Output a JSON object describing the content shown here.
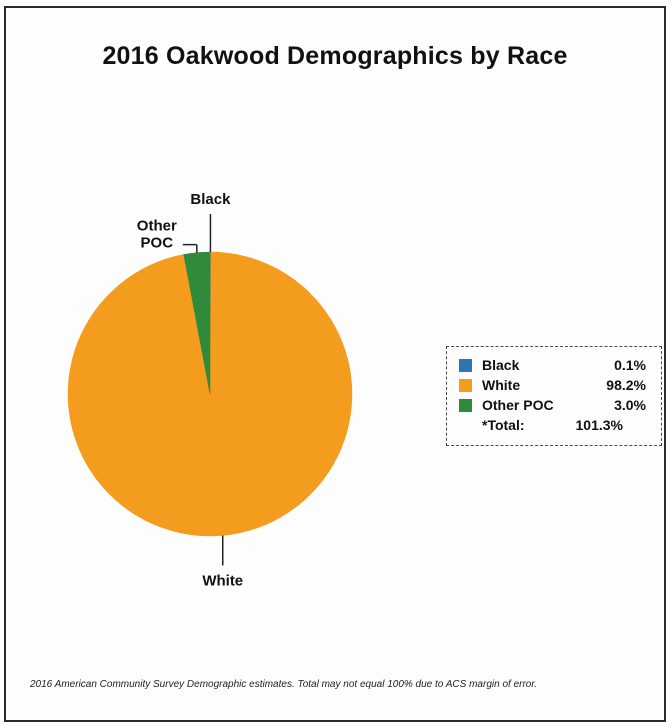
{
  "chart_data": {
    "type": "pie",
    "title": "2016 Oakwood Demographics by Race",
    "slices": [
      {
        "label": "Black",
        "legend_label": "Black",
        "value": 0.1,
        "value_label": "0.1%",
        "color": "#2e75b6"
      },
      {
        "label": "White",
        "legend_label": "White",
        "value": 98.2,
        "value_label": "98.2%",
        "color": "#f39c1e"
      },
      {
        "label": "Other\nPOC",
        "legend_label": "Other POC",
        "value": 3.0,
        "value_label": "3.0%",
        "color": "#2f8a3a"
      }
    ],
    "total": {
      "label": "*Total:",
      "value": 101.3,
      "value_label": "101.3%"
    },
    "legend_position": "right",
    "note": "2016 American Community Survey Demographic estimates. Total may not equal 100% due to ACS margin of error."
  }
}
